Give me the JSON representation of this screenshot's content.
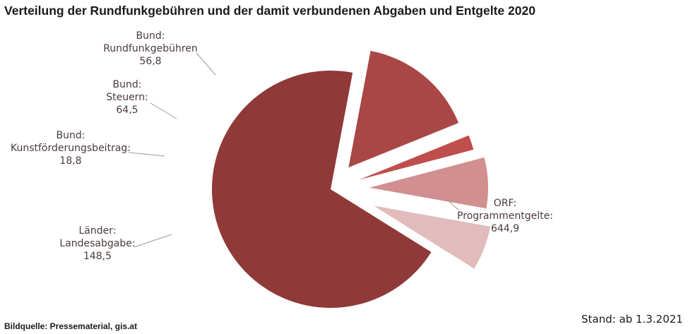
{
  "title": "Verteilung der Rundfunkgebühren und der damit verbundenen Abgaben und Entgelte 2020",
  "source": "Bildquelle: Pressematerial, gis.at",
  "stand": "Stand: ab 1.3.2021",
  "chart_data": {
    "type": "pie",
    "title": "Verteilung der Rundfunkgebühren und der damit verbundenen Abgaben und Entgelte 2020",
    "slices": [
      {
        "label_lines": [
          "ORF:",
          "Programmentgelte:"
        ],
        "value_text": "644,9",
        "value": 644.9,
        "color": "#8f3938"
      },
      {
        "label_lines": [
          "Länder:",
          "Landesabgabe:"
        ],
        "value_text": "148,5",
        "value": 148.5,
        "color": "#a94746"
      },
      {
        "label_lines": [
          "Bund:",
          "Kunstförderungsbeitrag:"
        ],
        "value_text": "18,8",
        "value": 18.8,
        "color": "#c04e4c"
      },
      {
        "label_lines": [
          "Bund:",
          "Steuern:"
        ],
        "value_text": "64,5",
        "value": 64.5,
        "color": "#d18f8f"
      },
      {
        "label_lines": [
          "Bund:",
          "Rundfunkgebühren"
        ],
        "value_text": "56,8",
        "value": 56.8,
        "color": "#e2bcbc"
      }
    ]
  }
}
